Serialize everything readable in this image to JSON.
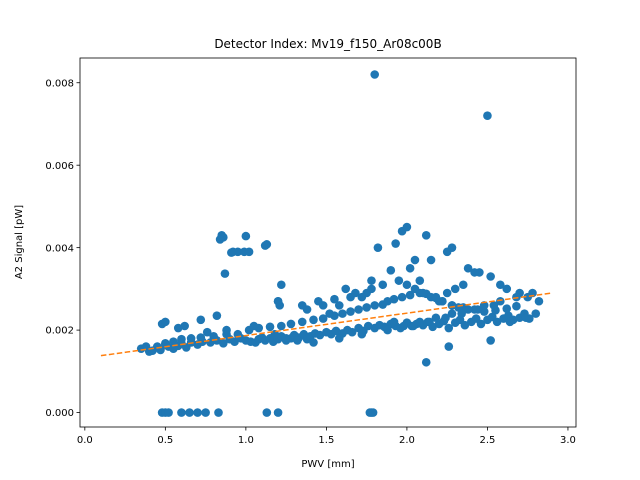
{
  "chart_data": {
    "type": "scatter",
    "title": "Detector Index: Mv19_f150_Ar08c00B",
    "xlabel": "PWV [mm]",
    "ylabel": "A2 Signal [pW]",
    "xlim": [
      -0.03,
      3.05
    ],
    "ylim": [
      -0.00035,
      0.0086
    ],
    "xticks": [
      0.0,
      0.5,
      1.0,
      1.5,
      2.0,
      2.5,
      3.0
    ],
    "xtick_labels": [
      "0.0",
      "0.5",
      "1.0",
      "1.5",
      "2.0",
      "2.5",
      "3.0"
    ],
    "yticks": [
      0.0,
      0.002,
      0.004,
      0.006,
      0.008
    ],
    "ytick_labels": [
      "0.000",
      "0.002",
      "0.004",
      "0.006",
      "0.008"
    ],
    "grid": false,
    "series": [
      {
        "name": "data",
        "type": "scatter",
        "color": "#1f77b4",
        "x": [
          0.35,
          0.38,
          0.4,
          0.42,
          0.45,
          0.47,
          0.5,
          0.52,
          0.55,
          0.58,
          0.6,
          0.63,
          0.66,
          0.7,
          0.73,
          0.78,
          0.82,
          0.86,
          0.9,
          0.93,
          0.97,
          1.0,
          1.03,
          1.06,
          1.08,
          1.1,
          1.12,
          1.15,
          1.17,
          1.2,
          1.22,
          1.25,
          1.28,
          1.3,
          1.33,
          1.36,
          1.38,
          1.4,
          1.43,
          1.46,
          1.5,
          1.53,
          1.56,
          1.6,
          1.63,
          1.66,
          1.7,
          1.73,
          1.76,
          1.8,
          1.83,
          1.86,
          1.9,
          1.93,
          1.96,
          2.0,
          2.03,
          2.06,
          2.1,
          2.13,
          2.16,
          2.2,
          2.23,
          2.26,
          2.3,
          2.33,
          2.36,
          2.4,
          2.43,
          2.46,
          2.5,
          2.53,
          2.56,
          2.6,
          2.63,
          2.66,
          2.7,
          2.73,
          2.76,
          0.45,
          0.5,
          0.55,
          0.6,
          0.66,
          0.72,
          0.8,
          0.88,
          0.95,
          1.02,
          1.08,
          1.15,
          1.22,
          1.28,
          1.35,
          1.42,
          1.48,
          1.55,
          1.6,
          1.65,
          1.7,
          1.75,
          1.8,
          1.85,
          1.88,
          1.92,
          1.97,
          2.02,
          2.08,
          2.12,
          2.18,
          2.22,
          2.28,
          2.35,
          2.42,
          2.48,
          2.55,
          2.62,
          2.68,
          0.85,
          0.86,
          0.84,
          0.92,
          0.95,
          0.99,
          0.87,
          0.91,
          1.0,
          1.02,
          1.12,
          1.13,
          1.2,
          1.21,
          1.35,
          1.45,
          1.55,
          1.65,
          1.75,
          1.78,
          1.85,
          1.95,
          2.0,
          2.05,
          2.1,
          2.15,
          2.2,
          2.25,
          2.3,
          2.35,
          1.9,
          2.02,
          2.08,
          2.18,
          2.22,
          2.28,
          2.32,
          2.45,
          2.52,
          2.58,
          2.62,
          2.7,
          2.75,
          2.82,
          1.97,
          2.0,
          1.93,
          2.12,
          2.25,
          2.28,
          2.05,
          2.15,
          2.38,
          2.42,
          1.82,
          1.2,
          1.22,
          1.38,
          1.52,
          1.58,
          1.72,
          1.68,
          1.78,
          1.62,
          1.48,
          2.12,
          2.26,
          2.52,
          1.8,
          2.5,
          0.48,
          0.5,
          0.52,
          0.6,
          0.65,
          0.7,
          0.75,
          0.83,
          1.13,
          1.2,
          1.77,
          1.78,
          1.79,
          0.48,
          0.5,
          0.62,
          0.58,
          0.72,
          0.76,
          0.88,
          0.82,
          1.05,
          1.18,
          1.25,
          1.32,
          1.42,
          1.58,
          1.72,
          1.88,
          1.98,
          2.08,
          2.18,
          2.28,
          2.38,
          2.48,
          2.58,
          2.68,
          2.78,
          1.92,
          2.04,
          2.14,
          2.24,
          2.34,
          2.44,
          2.54,
          2.64,
          2.74,
          2.8
        ],
        "y": [
          0.00155,
          0.0016,
          0.00148,
          0.0015,
          0.00158,
          0.00152,
          0.00165,
          0.0016,
          0.00155,
          0.00162,
          0.00168,
          0.00158,
          0.0017,
          0.00165,
          0.00172,
          0.0017,
          0.00175,
          0.00168,
          0.00178,
          0.00172,
          0.0018,
          0.00175,
          0.00172,
          0.0017,
          0.00178,
          0.00182,
          0.00175,
          0.0018,
          0.00172,
          0.00178,
          0.00185,
          0.00175,
          0.0018,
          0.00188,
          0.00182,
          0.0019,
          0.00178,
          0.00185,
          0.00192,
          0.00188,
          0.00195,
          0.0019,
          0.00198,
          0.00192,
          0.002,
          0.00195,
          0.00205,
          0.00198,
          0.0021,
          0.00205,
          0.00212,
          0.00208,
          0.00215,
          0.0021,
          0.00205,
          0.00218,
          0.0021,
          0.00215,
          0.00212,
          0.0022,
          0.00208,
          0.00215,
          0.00222,
          0.00205,
          0.00218,
          0.00225,
          0.00212,
          0.0022,
          0.00228,
          0.00215,
          0.00225,
          0.00232,
          0.0022,
          0.00228,
          0.00235,
          0.00225,
          0.0023,
          0.0024,
          0.00228,
          0.0016,
          0.00168,
          0.00172,
          0.00178,
          0.0018,
          0.00182,
          0.00185,
          0.0019,
          0.0019,
          0.002,
          0.00205,
          0.00208,
          0.0021,
          0.00215,
          0.0022,
          0.00225,
          0.00228,
          0.00235,
          0.0024,
          0.00245,
          0.0025,
          0.00255,
          0.0026,
          0.00262,
          0.0027,
          0.00275,
          0.0028,
          0.00285,
          0.0029,
          0.00288,
          0.00278,
          0.0027,
          0.0026,
          0.00255,
          0.0025,
          0.00245,
          0.00248,
          0.00252,
          0.00258,
          0.0043,
          0.00425,
          0.0042,
          0.0039,
          0.0039,
          0.0039,
          0.00337,
          0.00388,
          0.00428,
          0.0039,
          0.00405,
          0.00408,
          0.0027,
          0.0026,
          0.0026,
          0.0027,
          0.00275,
          0.0028,
          0.0029,
          0.003,
          0.0031,
          0.0032,
          0.0031,
          0.003,
          0.0029,
          0.0028,
          0.0027,
          0.0029,
          0.003,
          0.0031,
          0.00345,
          0.0035,
          0.0032,
          0.0028,
          0.0027,
          0.0026,
          0.00255,
          0.0034,
          0.0033,
          0.0031,
          0.003,
          0.0029,
          0.0028,
          0.0027,
          0.0044,
          0.0045,
          0.0041,
          0.0043,
          0.0039,
          0.004,
          0.0037,
          0.0037,
          0.0035,
          0.0034,
          0.004,
          0.0027,
          0.0031,
          0.0025,
          0.0024,
          0.0026,
          0.0028,
          0.0029,
          0.0032,
          0.003,
          0.0026,
          0.00122,
          0.0016,
          0.00175,
          0.0082,
          0.0072,
          0.0,
          0.0,
          0.0,
          0.0,
          0.0,
          0.0,
          0.0,
          0.0,
          0.0,
          0.0,
          0.0,
          0.0,
          0.0,
          0.00215,
          0.0022,
          0.0021,
          0.00205,
          0.00225,
          0.00195,
          0.002,
          0.00235,
          0.0021,
          0.0019,
          0.0018,
          0.00175,
          0.0017,
          0.0018,
          0.0019,
          0.002,
          0.0021,
          0.0022,
          0.0023,
          0.0024,
          0.0025,
          0.0026,
          0.0027,
          0.0028,
          0.0029,
          0.0022,
          0.0021,
          0.0022,
          0.0023,
          0.0024,
          0.0025,
          0.0026,
          0.0022,
          0.0023,
          0.0024
        ]
      },
      {
        "name": "fit",
        "type": "line",
        "style": "dashed",
        "color": "#ff7f0e",
        "x": [
          0.1,
          2.9
        ],
        "y": [
          0.00138,
          0.0029
        ]
      }
    ]
  }
}
